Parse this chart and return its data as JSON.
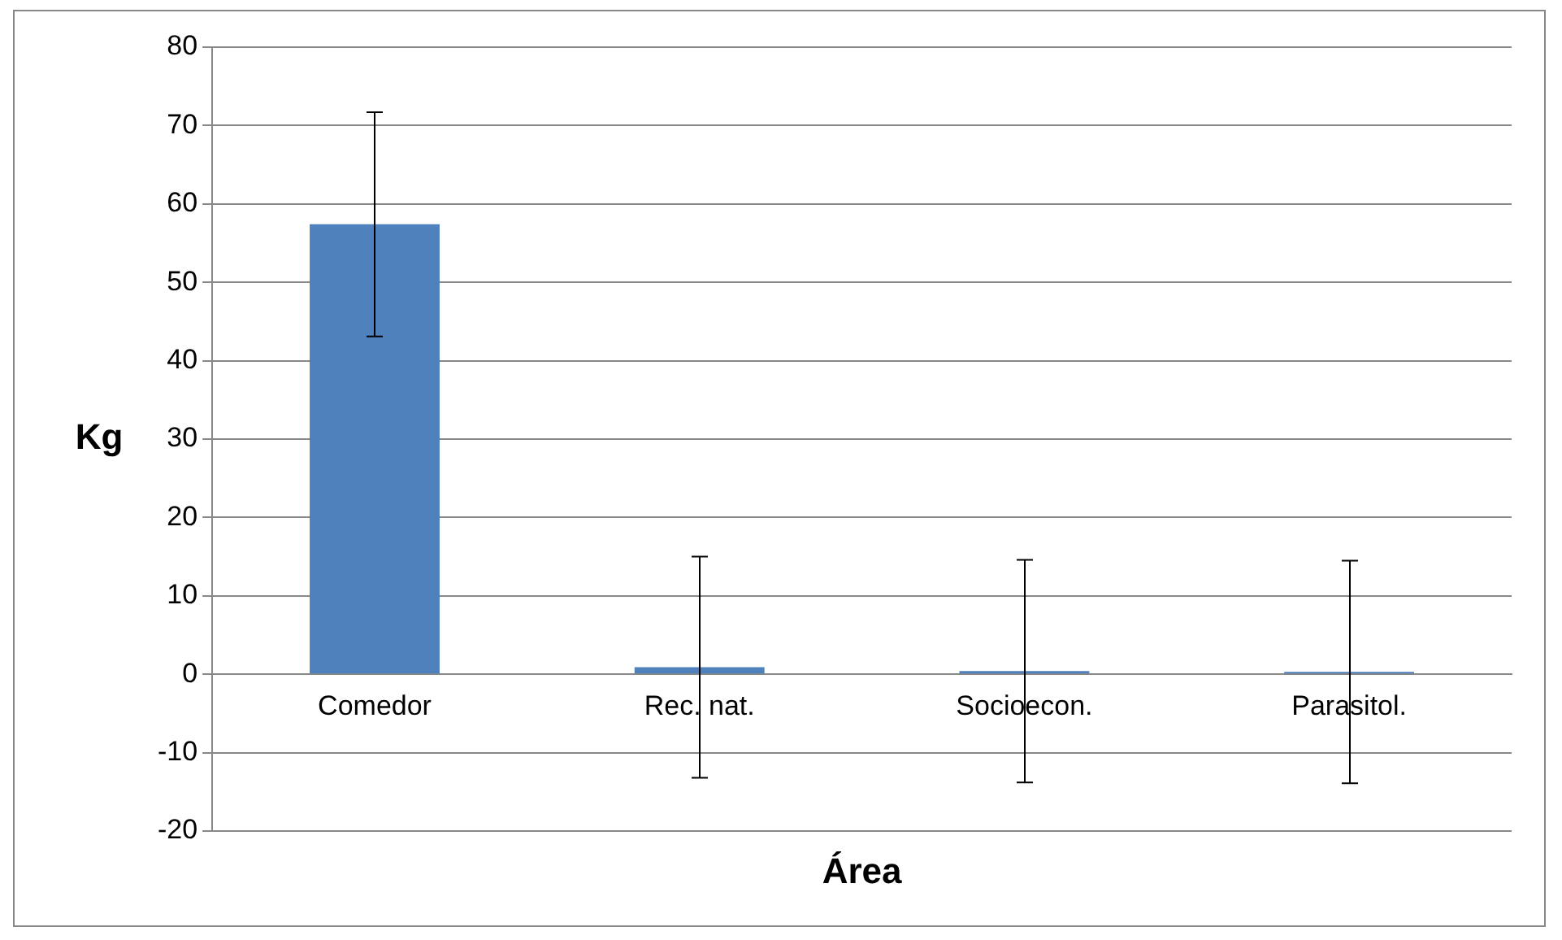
{
  "chart_data": {
    "type": "bar",
    "xlabel": "Área",
    "ylabel": "Kg",
    "categories": [
      "Comedor",
      "Rec. nat.",
      "Socioecon.",
      "Parasitol."
    ],
    "values": [
      57.4,
      0.9,
      0.4,
      0.3
    ],
    "errors": [
      14.3,
      14.1,
      14.2,
      14.2
    ],
    "color": "#4f81bd",
    "ylim": [
      -20,
      80
    ],
    "yticks": [
      -20,
      -10,
      0,
      10,
      20,
      30,
      40,
      50,
      60,
      70,
      80
    ],
    "grid": "y",
    "legend": false
  }
}
